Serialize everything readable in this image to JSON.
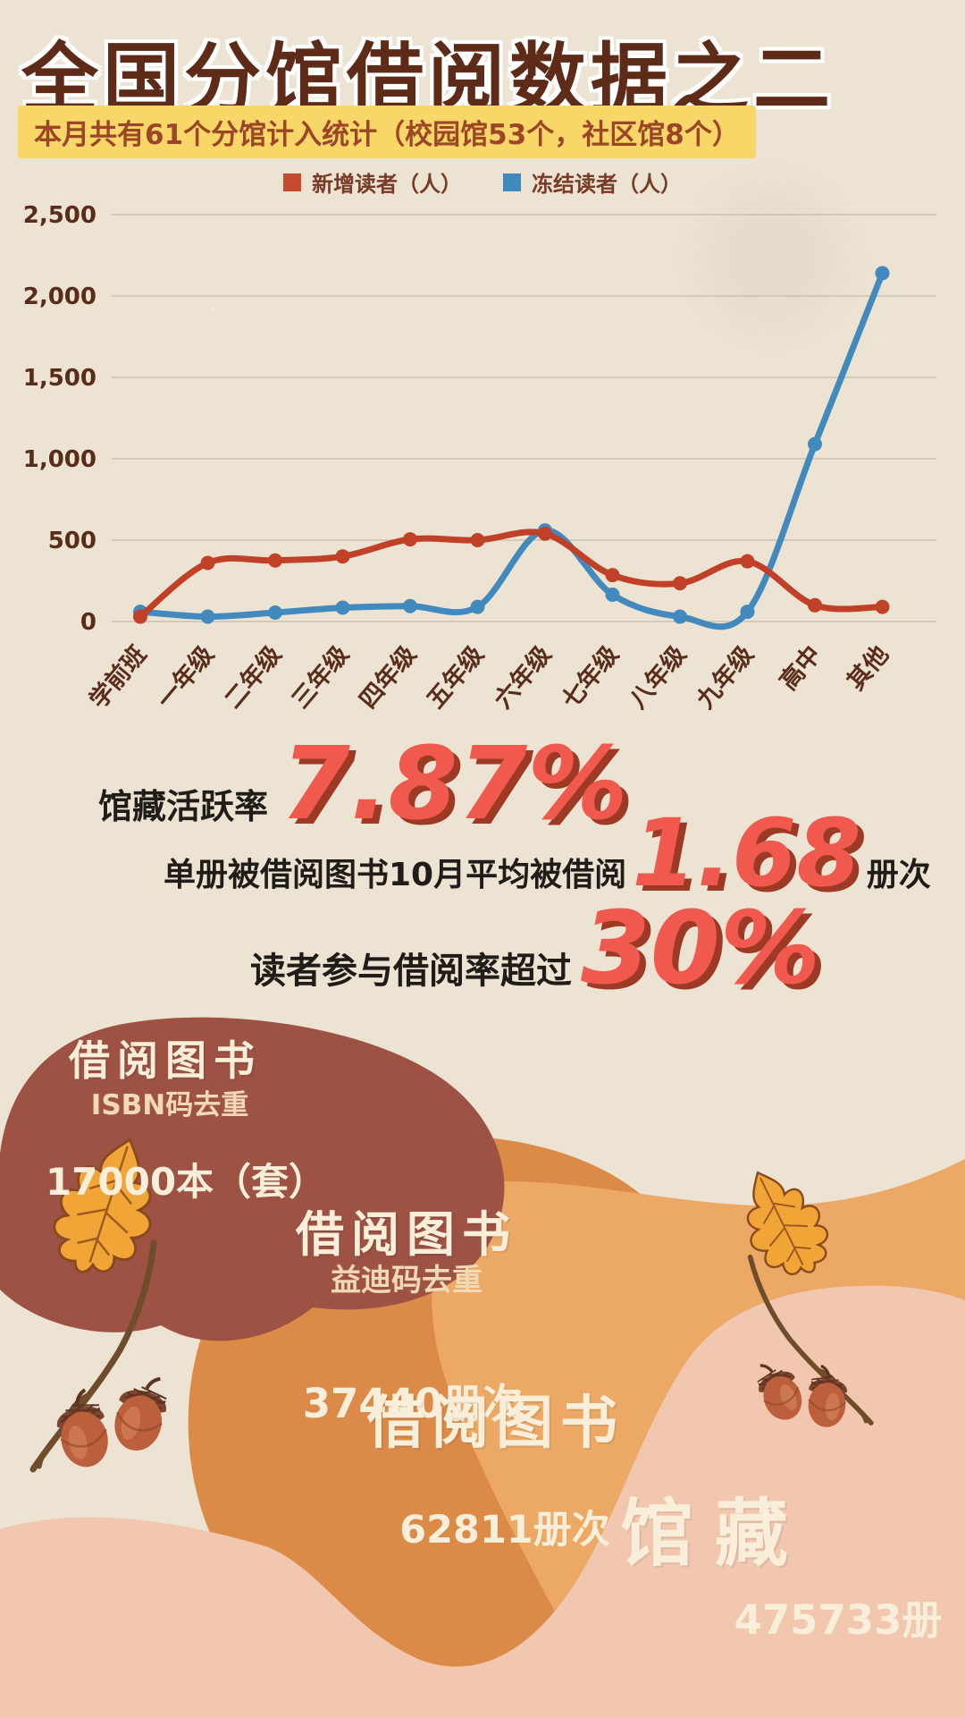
{
  "title": "全国分馆借阅数据之二",
  "subtitle": "本月共有61个分馆计入统计（校园馆53个，社区馆8个）",
  "legend": [
    {
      "label": "新增读者（人）",
      "color": "#c44b2e"
    },
    {
      "label": "冻结读者（人）",
      "color": "#4189bd"
    }
  ],
  "chart_data": {
    "type": "line",
    "categories": [
      "学前班",
      "一年级",
      "二年级",
      "三年级",
      "四年级",
      "五年级",
      "六年级",
      "七年级",
      "八年级",
      "九年级",
      "高中",
      "其他"
    ],
    "series": [
      {
        "name": "新增读者（人）",
        "color": "#c04128",
        "values": [
          30,
          360,
          375,
          400,
          505,
          500,
          540,
          285,
          235,
          370,
          100,
          90
        ]
      },
      {
        "name": "冻结读者（人）",
        "color": "#4289bd",
        "values": [
          60,
          30,
          55,
          85,
          95,
          90,
          560,
          165,
          30,
          60,
          1090,
          2140
        ]
      }
    ],
    "ylim": [
      0,
      2500
    ],
    "ytick_labels": [
      "0",
      "500",
      "1,000",
      "1,500",
      "2,000",
      "2,500"
    ],
    "grid": true,
    "legend_position": "top",
    "x_label_rotation": -50
  },
  "stats": [
    {
      "prefix": "馆藏活跃率",
      "value": "7.87%",
      "suffix": ""
    },
    {
      "prefix": "单册被借阅图书10月平均被借阅",
      "value": "1.68",
      "suffix": "册次"
    },
    {
      "prefix": "读者参与借阅率超过",
      "value": "30%",
      "suffix": ""
    }
  ],
  "blobs": {
    "isbn": {
      "title": "借阅图书",
      "subtitle": "ISBN码去重",
      "value": "17000本（套）"
    },
    "yidi": {
      "title": "借阅图书",
      "subtitle": "益迪码去重",
      "value": "37440册次"
    },
    "total": {
      "title": "借阅图书",
      "value": "62811册次"
    },
    "collection": {
      "title": "馆藏",
      "value": "475733册"
    }
  },
  "colors": {
    "paper": "#ece3d3",
    "title_brown": "#5d2b17",
    "highlight_yellow": "#f8d768",
    "subtitle_text": "#9c4627",
    "grid_line": "#ccc2b2",
    "axis_text": "#5a2c1c",
    "accent_red": "#f2594e",
    "accent_red_shadow": "#9c3a26",
    "blob_brown": "#9e5244",
    "blob_orange": "#dc8a48",
    "blob_light_orange": "#eca966",
    "blob_pink": "#f2c7b0",
    "cream_text": "#f8eed9"
  }
}
